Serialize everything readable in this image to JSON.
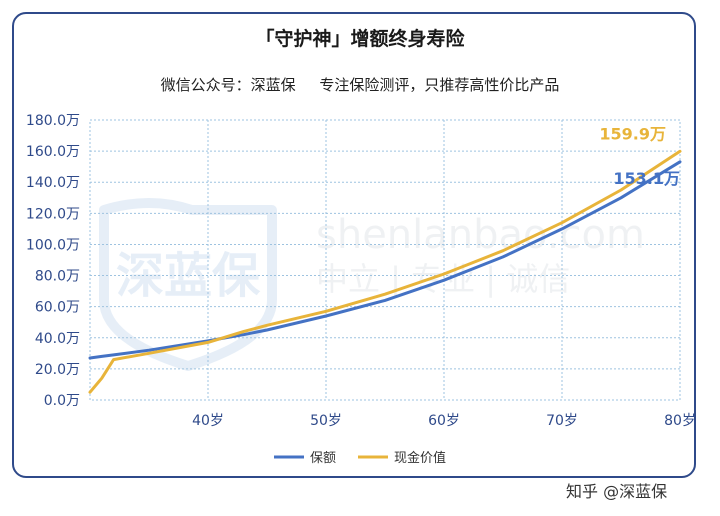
{
  "header": {
    "title": "「守护神」增额终身寿险",
    "subtitle": "微信公众号：深蓝保     专注保险测评，只推荐高性价比产品"
  },
  "watermark": {
    "logo_text": "深蓝保",
    "domain_text": "shenlanbao.com",
    "slogan": "中立 | 专业 | 诚信"
  },
  "footer": {
    "credit": "知乎 @深蓝保"
  },
  "colors": {
    "sum_insured": "#4472c4",
    "cash_value": "#e8b43a",
    "axis_text": "#2f4a8a",
    "grid": "#9ec3e0",
    "card_border": "#2f4a8a"
  },
  "chart_data": {
    "type": "line",
    "title": "「守护神」增额终身寿险",
    "xlabel": "",
    "ylabel": "",
    "xlim": [
      30,
      80
    ],
    "ylim": [
      0,
      180
    ],
    "x_ticks": [
      40,
      50,
      60,
      70,
      80
    ],
    "x_tick_labels": [
      "40岁",
      "50岁",
      "60岁",
      "70岁",
      "80岁"
    ],
    "y_ticks": [
      0,
      20,
      40,
      60,
      80,
      100,
      120,
      140,
      160,
      180
    ],
    "y_tick_labels": [
      "0.0万",
      "20.0万",
      "40.0万",
      "60.0万",
      "80.0万",
      "100.0万",
      "120.0万",
      "140.0万",
      "160.0万",
      "180.0万"
    ],
    "grid": true,
    "legend_position": "bottom",
    "x": [
      30,
      31,
      32,
      35,
      40,
      43,
      45,
      50,
      55,
      60,
      65,
      70,
      75,
      80
    ],
    "series": [
      {
        "name": "保额",
        "color": "#4472c4",
        "values": [
          27,
          28,
          29,
          32,
          38,
          42,
          45,
          54,
          64,
          77,
          92,
          110,
          130,
          153.1
        ]
      },
      {
        "name": "现金价值",
        "color": "#e8b43a",
        "values": [
          5,
          14,
          26,
          30,
          37,
          44,
          48,
          57,
          68,
          81,
          96,
          114,
          135,
          159.9
        ]
      }
    ],
    "annotations": [
      {
        "series": 1,
        "text": "159.9万"
      },
      {
        "series": 0,
        "text": "153.1万"
      }
    ]
  }
}
